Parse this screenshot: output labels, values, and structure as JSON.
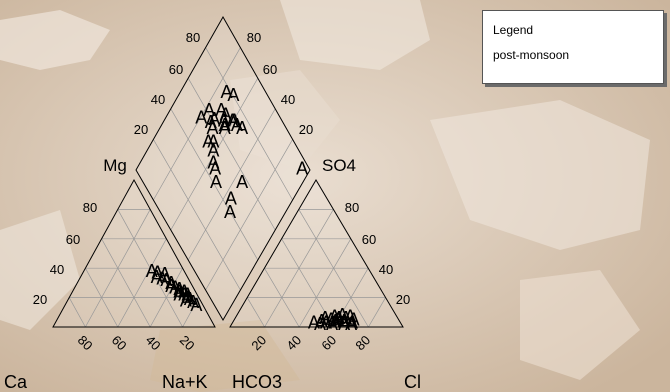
{
  "chart_data": {
    "type": "scatter",
    "subtype": "piper-trilinear",
    "marker_symbol": "A",
    "marker_color": "#000000",
    "grid": true,
    "legend": {
      "position": "top-right",
      "title": "Legend",
      "entries": [
        "post-monsoon"
      ]
    },
    "axis_labels": {
      "cation_left": "Ca",
      "cation_right": "Na+K",
      "cation_top": "Mg",
      "anion_left": "HCO3",
      "anion_right": "Cl",
      "anion_top": "SO4"
    },
    "tick_values": [
      80,
      60,
      40,
      20
    ],
    "cations": [
      {
        "Ca": 20,
        "Mg": 38,
        "NaK": 42
      },
      {
        "Ca": 17,
        "Mg": 37,
        "NaK": 46
      },
      {
        "Ca": 19,
        "Mg": 34,
        "NaK": 47
      },
      {
        "Ca": 16,
        "Mg": 33,
        "NaK": 51
      },
      {
        "Ca": 14,
        "Mg": 32,
        "NaK": 54
      },
      {
        "Ca": 13,
        "Mg": 36,
        "NaK": 51
      },
      {
        "Ca": 12,
        "Mg": 30,
        "NaK": 58
      },
      {
        "Ca": 11,
        "Mg": 27,
        "NaK": 62
      },
      {
        "Ca": 10,
        "Mg": 24,
        "NaK": 66
      },
      {
        "Ca": 8,
        "Mg": 22,
        "NaK": 70
      },
      {
        "Ca": 7,
        "Mg": 20,
        "NaK": 73
      },
      {
        "Ca": 6,
        "Mg": 19,
        "NaK": 75
      },
      {
        "Ca": 5,
        "Mg": 17,
        "NaK": 78
      },
      {
        "Ca": 4,
        "Mg": 15,
        "NaK": 81
      },
      {
        "Ca": 9,
        "Mg": 26,
        "NaK": 65
      },
      {
        "Ca": 11,
        "Mg": 22,
        "NaK": 67
      },
      {
        "Ca": 7,
        "Mg": 24,
        "NaK": 69
      },
      {
        "Ca": 9,
        "Mg": 18,
        "NaK": 73
      },
      {
        "Ca": 6,
        "Mg": 22,
        "NaK": 72
      },
      {
        "Ca": 13,
        "Mg": 28,
        "NaK": 59
      }
    ],
    "anions": [
      {
        "HCO3": 50,
        "SO4": 3,
        "Cl": 47
      },
      {
        "HCO3": 45,
        "SO4": 4,
        "Cl": 51
      },
      {
        "HCO3": 42,
        "SO4": 6,
        "Cl": 52
      },
      {
        "HCO3": 38,
        "SO4": 3,
        "Cl": 59
      },
      {
        "HCO3": 35,
        "SO4": 5,
        "Cl": 60
      },
      {
        "HCO3": 32,
        "SO4": 4,
        "Cl": 64
      },
      {
        "HCO3": 30,
        "SO4": 6,
        "Cl": 64
      },
      {
        "HCO3": 28,
        "SO4": 3,
        "Cl": 69
      },
      {
        "HCO3": 36,
        "SO4": 7,
        "Cl": 57
      },
      {
        "HCO3": 33,
        "SO4": 2,
        "Cl": 65
      },
      {
        "HCO3": 40,
        "SO4": 2,
        "Cl": 58
      },
      {
        "HCO3": 47,
        "SO4": 2,
        "Cl": 51
      },
      {
        "HCO3": 26,
        "SO4": 5,
        "Cl": 69
      },
      {
        "HCO3": 31,
        "SO4": 8,
        "Cl": 61
      },
      {
        "HCO3": 37,
        "SO4": 4,
        "Cl": 59
      },
      {
        "HCO3": 34,
        "SO4": 6,
        "Cl": 60
      },
      {
        "HCO3": 29,
        "SO4": 2,
        "Cl": 69
      },
      {
        "HCO3": 43,
        "SO4": 3,
        "Cl": 54
      },
      {
        "HCO3": 39,
        "SO4": 5,
        "Cl": 56
      },
      {
        "HCO3": 27,
        "SO4": 7,
        "Cl": 66
      }
    ],
    "diamond_outliers": [
      {
        "cation_NaK": 62,
        "anion_SO4": 78
      },
      {
        "cation_NaK": 55,
        "anion_SO4": 80
      },
      {
        "cation_NaK": 57,
        "anion_SO4": 35
      },
      {
        "cation_NaK": 45,
        "anion_SO4": 36
      },
      {
        "cation_NaK": 40,
        "anion_SO4": 32
      },
      {
        "cation_NaK": 96,
        "anion_SO4": 5
      }
    ]
  }
}
